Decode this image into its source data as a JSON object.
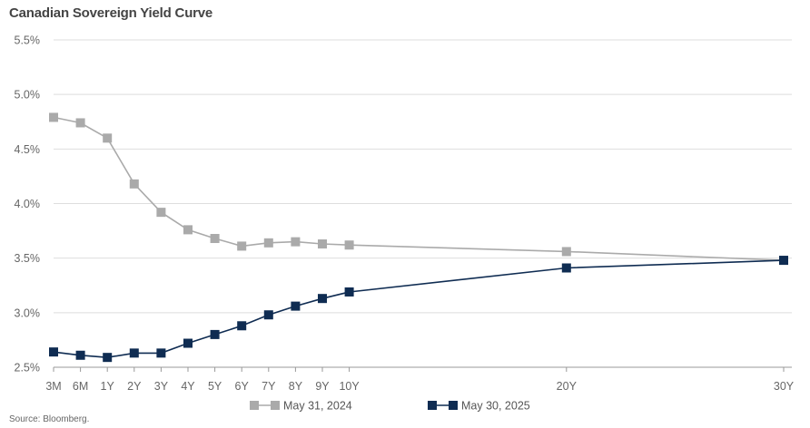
{
  "chart_data": {
    "type": "line",
    "title": "Canadian Sovereign Yield Curve",
    "source": "Source: Bloomberg.",
    "categories": [
      "3M",
      "6M",
      "1Y",
      "2Y",
      "3Y",
      "4Y",
      "5Y",
      "6Y",
      "7Y",
      "8Y",
      "9Y",
      "10Y",
      "20Y",
      "30Y"
    ],
    "x_years": [
      0.25,
      0.5,
      1,
      2,
      3,
      4,
      5,
      6,
      7,
      8,
      9,
      10,
      20,
      30
    ],
    "y_ticks": [
      "2.5%",
      "3.0%",
      "3.5%",
      "4.0%",
      "4.5%",
      "5.0%",
      "5.5%"
    ],
    "ylim": [
      2.5,
      5.5
    ],
    "grid": true,
    "legend_position": "bottom",
    "series": [
      {
        "name": "May 31, 2024",
        "color": "#aaaaaa",
        "values": [
          4.79,
          4.74,
          4.6,
          4.18,
          3.92,
          3.76,
          3.68,
          3.61,
          3.64,
          3.65,
          3.63,
          3.62,
          3.56,
          3.48
        ]
      },
      {
        "name": "May 30, 2025",
        "color": "#0f2c52",
        "values": [
          2.64,
          2.61,
          2.59,
          2.63,
          2.63,
          2.72,
          2.8,
          2.88,
          2.98,
          3.06,
          3.13,
          3.19,
          3.41,
          3.48
        ]
      }
    ]
  }
}
